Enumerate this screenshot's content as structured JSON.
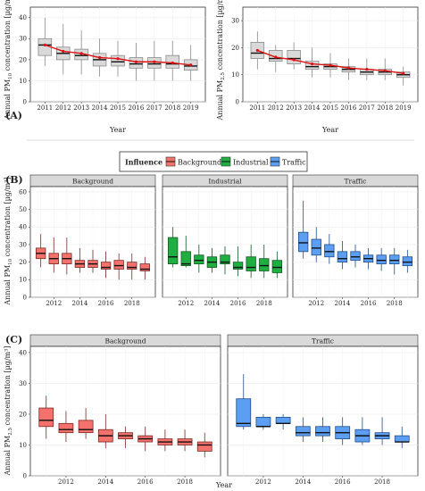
{
  "labels": {
    "a": "(A)",
    "b": "(B)",
    "c": "(C)",
    "year": "Year",
    "pm10_label": "Annual PM",
    "pm10_sub": "10",
    "pm25_sub": "2.5",
    "conc_suffix": " concentration [µg/m³]"
  },
  "legend": {
    "title": "Influence",
    "items": [
      {
        "label": "Background",
        "color": "#f4726b"
      },
      {
        "label": "Industrial",
        "color": "#1faf40"
      },
      {
        "label": "Traffic",
        "color": "#5c9ff2"
      }
    ]
  },
  "chart_data": [
    {
      "id": "A1",
      "type": "box",
      "ylabel": "Annual PM10 concentration [µg/m³]",
      "xlabel": "Year",
      "categories": [
        "2011",
        "2012",
        "2013",
        "2014",
        "2015",
        "2016",
        "2017",
        "2018",
        "2019"
      ],
      "ylim": [
        0,
        45
      ],
      "yticks": [
        0,
        10,
        20,
        30,
        40
      ],
      "boxes": [
        {
          "min": 17,
          "q1": 22,
          "med": 27,
          "q3": 30,
          "max": 40
        },
        {
          "min": 13,
          "q1": 20,
          "med": 23,
          "q3": 26,
          "max": 37
        },
        {
          "min": 13,
          "q1": 20,
          "med": 22,
          "q3": 25,
          "max": 34
        },
        {
          "min": 12,
          "q1": 17,
          "med": 20,
          "q3": 23,
          "max": 30
        },
        {
          "min": 12,
          "q1": 17,
          "med": 19,
          "q3": 22,
          "max": 29
        },
        {
          "min": 10,
          "q1": 16,
          "med": 18,
          "q3": 21,
          "max": 28
        },
        {
          "min": 10,
          "q1": 16,
          "med": 18,
          "q3": 21,
          "max": 29
        },
        {
          "min": 10,
          "q1": 16,
          "med": 18,
          "q3": 22,
          "max": 29
        },
        {
          "min": 10,
          "q1": 15,
          "med": 17,
          "q3": 20,
          "max": 27
        }
      ],
      "trend": [
        27,
        24,
        23,
        21,
        20.5,
        19,
        19,
        18.5,
        17.5
      ],
      "trend_color": "#dd1111"
    },
    {
      "id": "A2",
      "type": "box",
      "ylabel": "Annual PM2.5 concentration [µg/m³]",
      "xlabel": "Year",
      "categories": [
        "2011",
        "2012",
        "2013",
        "2014",
        "2015",
        "2016",
        "2017",
        "2018",
        "2019"
      ],
      "ylim": [
        0,
        35
      ],
      "yticks": [
        0,
        10,
        20,
        30
      ],
      "boxes": [
        {
          "min": 12,
          "q1": 16,
          "med": 18,
          "q3": 22,
          "max": 26
        },
        {
          "min": 11,
          "q1": 15,
          "med": 16,
          "q3": 19,
          "max": 21
        },
        {
          "min": 12,
          "q1": 14,
          "med": 16,
          "q3": 19,
          "max": 22
        },
        {
          "min": 9,
          "q1": 12,
          "med": 13,
          "q3": 15,
          "max": 20
        },
        {
          "min": 9,
          "q1": 12,
          "med": 13,
          "q3": 14,
          "max": 18
        },
        {
          "min": 8,
          "q1": 11,
          "med": 12,
          "q3": 13,
          "max": 16
        },
        {
          "min": 8,
          "q1": 10,
          "med": 11,
          "q3": 12,
          "max": 16
        },
        {
          "min": 8,
          "q1": 10,
          "med": 11,
          "q3": 12,
          "max": 16
        },
        {
          "min": 6,
          "q1": 9,
          "med": 10,
          "q3": 11,
          "max": 13
        }
      ],
      "trend": [
        19,
        16.5,
        15.5,
        14,
        13.5,
        12.5,
        12,
        11.5,
        10.5
      ],
      "trend_color": "#dd1111"
    },
    {
      "id": "B",
      "type": "box",
      "facets": [
        "Background",
        "Industrial",
        "Traffic"
      ],
      "ylabel": "Annual PM10 concentration [µg/m³]",
      "xlabel": "Year",
      "categories": [
        "2011",
        "2012",
        "2013",
        "2014",
        "2015",
        "2016",
        "2017",
        "2018",
        "2019"
      ],
      "xtick_labels": [
        "2012",
        "2014",
        "2016",
        "2018"
      ],
      "ylim": [
        0,
        63
      ],
      "yticks": [
        0,
        10,
        20,
        30,
        40,
        50,
        60
      ],
      "series": [
        {
          "name": "Background",
          "boxes": [
            {
              "min": 17,
              "q1": 22,
              "med": 25,
              "q3": 28,
              "max": 36
            },
            {
              "min": 14,
              "q1": 19,
              "med": 22,
              "q3": 25,
              "max": 34
            },
            {
              "min": 13,
              "q1": 19,
              "med": 22,
              "q3": 25,
              "max": 34
            },
            {
              "min": 14,
              "q1": 17,
              "med": 19,
              "q3": 21,
              "max": 28
            },
            {
              "min": 14,
              "q1": 17,
              "med": 19,
              "q3": 21,
              "max": 27
            },
            {
              "min": 11,
              "q1": 16,
              "med": 17,
              "q3": 20,
              "max": 26
            },
            {
              "min": 10,
              "q1": 16,
              "med": 18,
              "q3": 21,
              "max": 25
            },
            {
              "min": 10,
              "q1": 16,
              "med": 17,
              "q3": 20,
              "max": 25
            },
            {
              "min": 10,
              "q1": 15,
              "med": 16,
              "q3": 19,
              "max": 23
            }
          ]
        },
        {
          "name": "Industrial",
          "boxes": [
            {
              "min": 17,
              "q1": 19,
              "med": 23,
              "q3": 34,
              "max": 40
            },
            {
              "min": 17,
              "q1": 18,
              "med": 19,
              "q3": 26,
              "max": 35
            },
            {
              "min": 14,
              "q1": 19,
              "med": 21,
              "q3": 24,
              "max": 30
            },
            {
              "min": 14,
              "q1": 17,
              "med": 20,
              "q3": 23,
              "max": 28
            },
            {
              "min": 13,
              "q1": 19,
              "med": 20,
              "q3": 24,
              "max": 29
            },
            {
              "min": 12,
              "q1": 16,
              "med": 17,
              "q3": 20,
              "max": 29
            },
            {
              "min": 11,
              "q1": 15,
              "med": 17,
              "q3": 23,
              "max": 30
            },
            {
              "min": 11,
              "q1": 15,
              "med": 18,
              "q3": 22,
              "max": 30
            },
            {
              "min": 11,
              "q1": 14,
              "med": 17,
              "q3": 21,
              "max": 26
            }
          ]
        },
        {
          "name": "Traffic",
          "boxes": [
            {
              "min": 22,
              "q1": 26,
              "med": 31,
              "q3": 37,
              "max": 55
            },
            {
              "min": 20,
              "q1": 24,
              "med": 28,
              "q3": 33,
              "max": 40
            },
            {
              "min": 19,
              "q1": 23,
              "med": 26,
              "q3": 30,
              "max": 36
            },
            {
              "min": 16,
              "q1": 20,
              "med": 22,
              "q3": 26,
              "max": 32
            },
            {
              "min": 17,
              "q1": 21,
              "med": 23,
              "q3": 26,
              "max": 30
            },
            {
              "min": 16,
              "q1": 20,
              "med": 22,
              "q3": 24,
              "max": 28
            },
            {
              "min": 15,
              "q1": 19,
              "med": 21,
              "q3": 24,
              "max": 28
            },
            {
              "min": 13,
              "q1": 19,
              "med": 21,
              "q3": 24,
              "max": 28
            },
            {
              "min": 14,
              "q1": 18,
              "med": 20,
              "q3": 23,
              "max": 27
            }
          ]
        }
      ]
    },
    {
      "id": "C",
      "type": "box",
      "facets": [
        "Background",
        "Traffic"
      ],
      "ylabel": "Annual PM2.5 concentration [µg/m³]",
      "xlabel": "Year",
      "categories": [
        "2011",
        "2012",
        "2013",
        "2014",
        "2015",
        "2016",
        "2017",
        "2018",
        "2019"
      ],
      "xtick_labels": [
        "2012",
        "2014",
        "2016",
        "2018"
      ],
      "ylim": [
        0,
        42
      ],
      "yticks": [
        0,
        10,
        20,
        30,
        40
      ],
      "series": [
        {
          "name": "Background",
          "boxes": [
            {
              "min": 12,
              "q1": 16,
              "med": 18,
              "q3": 22,
              "max": 26
            },
            {
              "min": 11,
              "q1": 14,
              "med": 15,
              "q3": 17,
              "max": 21
            },
            {
              "min": 12,
              "q1": 14,
              "med": 15,
              "q3": 18,
              "max": 22
            },
            {
              "min": 9,
              "q1": 11,
              "med": 13,
              "q3": 15,
              "max": 20
            },
            {
              "min": 9,
              "q1": 12,
              "med": 13,
              "q3": 14,
              "max": 16
            },
            {
              "min": 8,
              "q1": 11,
              "med": 12,
              "q3": 13,
              "max": 16
            },
            {
              "min": 8,
              "q1": 10,
              "med": 11,
              "q3": 12,
              "max": 15
            },
            {
              "min": 8,
              "q1": 10,
              "med": 11,
              "q3": 12,
              "max": 15
            },
            {
              "min": 6,
              "q1": 8,
              "med": 10,
              "q3": 11,
              "max": 14
            }
          ]
        },
        {
          "name": "Traffic",
          "boxes": [
            {
              "min": 15,
              "q1": 16,
              "med": 17,
              "q3": 25,
              "max": 33
            },
            {
              "min": 15,
              "q1": 16,
              "med": 16,
              "q3": 19,
              "max": 20
            },
            {
              "min": 15,
              "q1": 17,
              "med": 17,
              "q3": 19,
              "max": 20
            },
            {
              "min": 11,
              "q1": 13,
              "med": 14,
              "q3": 16,
              "max": 19
            },
            {
              "min": 11,
              "q1": 13,
              "med": 14,
              "q3": 16,
              "max": 19
            },
            {
              "min": 10,
              "q1": 12,
              "med": 14,
              "q3": 16,
              "max": 19
            },
            {
              "min": 10,
              "q1": 11,
              "med": 13,
              "q3": 15,
              "max": 19
            },
            {
              "min": 10,
              "q1": 12,
              "med": 13,
              "q3": 14,
              "max": 19
            },
            {
              "min": 9,
              "q1": 11,
              "med": 11,
              "q3": 13,
              "max": 16
            }
          ]
        }
      ]
    }
  ]
}
